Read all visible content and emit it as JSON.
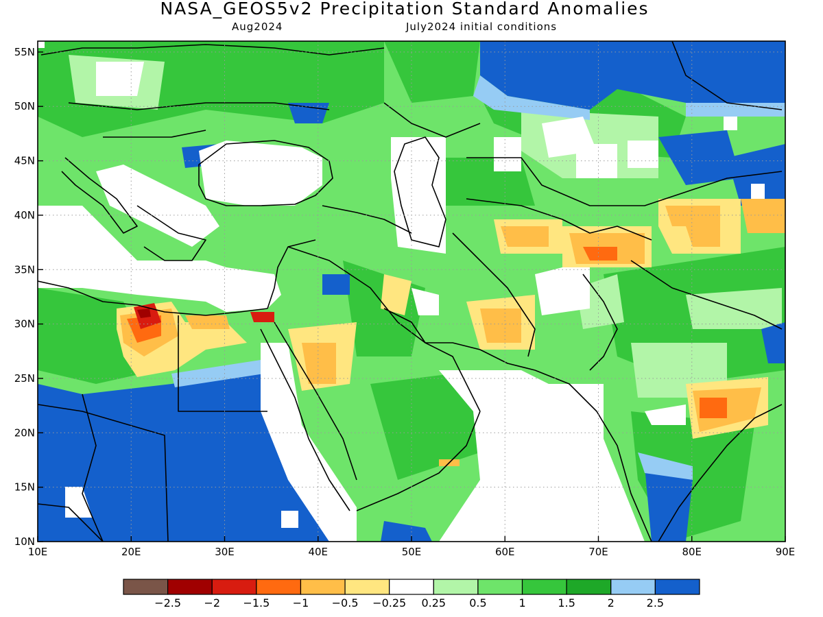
{
  "title": "NASA_GEOS5v2 Precipitation Standard Anomalies",
  "subtitle_left": "Aug2024",
  "subtitle_right": "July2024 initial conditions",
  "map": {
    "lon_range": [
      10,
      90
    ],
    "lat_range": [
      10,
      56
    ],
    "lon_ticks": [
      "10E",
      "20E",
      "30E",
      "40E",
      "50E",
      "60E",
      "70E",
      "80E",
      "90E"
    ],
    "lat_ticks": [
      "10N",
      "15N",
      "20N",
      "25N",
      "30N",
      "35N",
      "40N",
      "45N",
      "50N",
      "55N"
    ],
    "grid": "dotted",
    "region": "Europe, North Africa, Middle East, Central and South Asia"
  },
  "legend": {
    "labels": [
      "−2.5",
      "−2",
      "−1.5",
      "−1",
      "−0.5",
      "−0.25",
      "0.25",
      "0.5",
      "1",
      "1.5",
      "2",
      "2.5"
    ],
    "colors": [
      "#7a5548",
      "#a00000",
      "#d81c10",
      "#ff6a10",
      "#ffbe48",
      "#ffe680",
      "#ffffff",
      "#b2f5a8",
      "#6ee46a",
      "#36c63c",
      "#1ea828",
      "#96ccf4",
      "#1460cc"
    ]
  }
}
